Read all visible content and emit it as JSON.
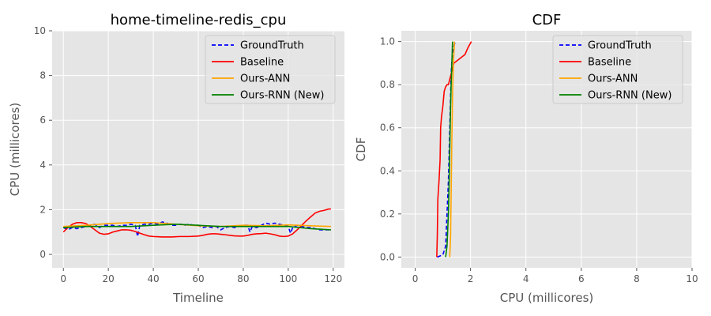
{
  "colors": {
    "background": "#E5E5E5",
    "grid": "#FFFFFF",
    "GroundTruth": "#0000FF",
    "Baseline": "#FF0000",
    "Ours-ANN": "#FFA500",
    "Ours-RNN (New)": "#008000"
  },
  "chart_data": [
    {
      "type": "line",
      "title": "home-timeline-redis_cpu",
      "xlabel": "Timeline",
      "ylabel": "CPU (millicores)",
      "xlim": [
        -5,
        125
      ],
      "ylim": [
        -0.6,
        10
      ],
      "xticks": [
        0,
        20,
        40,
        60,
        80,
        100,
        120
      ],
      "yticks": [
        0,
        2,
        4,
        6,
        8,
        10
      ],
      "grid": true,
      "legend_position": "top-right",
      "series": [
        {
          "name": "GroundTruth",
          "style": "dashed",
          "x": [
            0,
            2,
            4,
            6,
            8,
            10,
            12,
            14,
            16,
            18,
            20,
            22,
            24,
            26,
            28,
            30,
            32,
            33,
            34,
            36,
            38,
            40,
            42,
            44,
            46,
            48,
            50,
            52,
            54,
            56,
            58,
            60,
            62,
            64,
            66,
            68,
            70,
            72,
            74,
            76,
            78,
            80,
            82,
            83,
            84,
            86,
            88,
            90,
            92,
            94,
            96,
            98,
            100,
            101,
            102,
            104,
            106,
            108,
            110,
            112,
            114,
            116,
            119
          ],
          "y": [
            1.2,
            1.1,
            1.2,
            1.15,
            1.2,
            1.25,
            1.3,
            1.35,
            1.2,
            1.3,
            1.3,
            1.3,
            1.25,
            1.3,
            1.3,
            1.35,
            1.3,
            0.8,
            1.3,
            1.35,
            1.35,
            1.4,
            1.35,
            1.45,
            1.4,
            1.3,
            1.3,
            1.35,
            1.3,
            1.35,
            1.3,
            1.3,
            1.2,
            1.25,
            1.2,
            1.25,
            1.1,
            1.2,
            1.25,
            1.2,
            1.25,
            1.3,
            1.3,
            1.0,
            1.25,
            1.2,
            1.3,
            1.4,
            1.35,
            1.4,
            1.35,
            1.3,
            1.25,
            0.95,
            1.2,
            1.3,
            1.25,
            1.2,
            1.2,
            1.15,
            1.1,
            1.1,
            1.1
          ]
        },
        {
          "name": "Baseline",
          "style": "solid",
          "x": [
            0,
            2,
            4,
            6,
            8,
            10,
            12,
            14,
            16,
            18,
            20,
            22,
            24,
            26,
            28,
            30,
            32,
            34,
            36,
            38,
            40,
            44,
            48,
            52,
            56,
            60,
            62,
            64,
            66,
            68,
            70,
            72,
            74,
            76,
            78,
            80,
            82,
            84,
            86,
            88,
            90,
            92,
            94,
            96,
            98,
            100,
            102,
            104,
            106,
            108,
            110,
            112,
            114,
            116,
            118,
            119
          ],
          "y": [
            1.0,
            1.2,
            1.35,
            1.42,
            1.42,
            1.38,
            1.25,
            1.1,
            0.95,
            0.9,
            0.92,
            1.0,
            1.05,
            1.1,
            1.1,
            1.08,
            1.02,
            0.95,
            0.88,
            0.82,
            0.8,
            0.78,
            0.78,
            0.8,
            0.8,
            0.82,
            0.85,
            0.9,
            0.92,
            0.92,
            0.9,
            0.88,
            0.85,
            0.83,
            0.82,
            0.82,
            0.85,
            0.9,
            0.92,
            0.93,
            0.95,
            0.92,
            0.88,
            0.82,
            0.8,
            0.82,
            0.92,
            1.1,
            1.3,
            1.5,
            1.68,
            1.85,
            1.93,
            1.97,
            2.03,
            2.03
          ]
        },
        {
          "name": "Ours-ANN",
          "style": "solid",
          "x": [
            0,
            10,
            20,
            30,
            40,
            50,
            60,
            70,
            80,
            90,
            100,
            110,
            119
          ],
          "y": [
            1.25,
            1.3,
            1.38,
            1.42,
            1.42,
            1.35,
            1.28,
            1.25,
            1.3,
            1.28,
            1.32,
            1.28,
            1.25
          ]
        },
        {
          "name": "Ours-RNN (New)",
          "style": "solid",
          "x": [
            0,
            10,
            20,
            30,
            40,
            50,
            60,
            70,
            80,
            90,
            100,
            110,
            119
          ],
          "y": [
            1.2,
            1.25,
            1.25,
            1.25,
            1.3,
            1.35,
            1.3,
            1.25,
            1.25,
            1.25,
            1.25,
            1.15,
            1.1
          ]
        }
      ]
    },
    {
      "type": "line",
      "title": "CDF",
      "xlabel": "CPU (millicores)",
      "ylabel": "CDF",
      "xlim": [
        -0.5,
        10
      ],
      "ylim": [
        -0.05,
        1.05
      ],
      "xticks": [
        0,
        2,
        4,
        6,
        8,
        10
      ],
      "yticks": [
        0.0,
        0.2,
        0.4,
        0.6,
        0.8,
        1.0
      ],
      "ytick_labels": [
        "0.0",
        "0.2",
        "0.4",
        "0.6",
        "0.8",
        "1.0"
      ],
      "grid": true,
      "legend_position": "top-right",
      "series": [
        {
          "name": "GroundTruth",
          "style": "dashed",
          "x": [
            0.8,
            1.0,
            1.1,
            1.15,
            1.2,
            1.25,
            1.28,
            1.3,
            1.32,
            1.35,
            1.4,
            1.45
          ],
          "y": [
            0.0,
            0.01,
            0.05,
            0.2,
            0.35,
            0.6,
            0.75,
            0.85,
            0.9,
            0.95,
            0.98,
            1.0
          ]
        },
        {
          "name": "Baseline",
          "style": "solid",
          "x": [
            0.78,
            0.8,
            0.82,
            0.86,
            0.9,
            0.92,
            0.95,
            1.0,
            1.05,
            1.1,
            1.15,
            1.2,
            1.3,
            1.4,
            1.6,
            1.8,
            1.9,
            2.03
          ],
          "y": [
            0.0,
            0.1,
            0.27,
            0.35,
            0.45,
            0.6,
            0.65,
            0.7,
            0.77,
            0.79,
            0.8,
            0.8,
            0.85,
            0.9,
            0.92,
            0.94,
            0.97,
            1.0
          ]
        },
        {
          "name": "Ours-ANN",
          "style": "solid",
          "x": [
            1.25,
            1.28,
            1.3,
            1.32,
            1.35,
            1.38,
            1.42
          ],
          "y": [
            0.0,
            0.1,
            0.3,
            0.5,
            0.75,
            0.9,
            1.0
          ]
        },
        {
          "name": "Ours-RNN (New)",
          "style": "solid",
          "x": [
            1.1,
            1.15,
            1.2,
            1.22,
            1.25,
            1.28,
            1.3,
            1.35
          ],
          "y": [
            0.0,
            0.05,
            0.2,
            0.3,
            0.5,
            0.7,
            0.8,
            1.0
          ]
        }
      ]
    }
  ]
}
